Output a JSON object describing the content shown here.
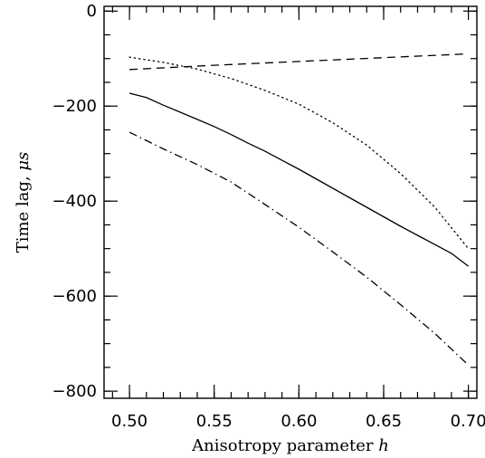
{
  "chart_data": {
    "type": "line",
    "title": "",
    "xlabel": "Anisotropy parameter",
    "xlabel_var": "h",
    "ylabel": "Time lag,",
    "ylabel_unit": "μs",
    "xlim": [
      0.485,
      0.705
    ],
    "ylim": [
      -815,
      10
    ],
    "xticks": [
      {
        "value": 0.5,
        "label": "0.50"
      },
      {
        "value": 0.55,
        "label": "0.55"
      },
      {
        "value": 0.6,
        "label": "0.60"
      },
      {
        "value": 0.65,
        "label": "0.65"
      },
      {
        "value": 0.7,
        "label": "0.70"
      }
    ],
    "yticks": [
      {
        "value": 0,
        "label": "0"
      },
      {
        "value": -200,
        "label": "−200"
      },
      {
        "value": -400,
        "label": "−400"
      },
      {
        "value": -600,
        "label": "−600"
      },
      {
        "value": -800,
        "label": "−800"
      }
    ],
    "x_minor_step": 0.01,
    "y_minor_step": 50,
    "grid": false,
    "series": [
      {
        "style": "solid",
        "x": [
          0.5,
          0.51,
          0.52,
          0.53,
          0.54,
          0.55,
          0.56,
          0.57,
          0.58,
          0.59,
          0.6,
          0.61,
          0.62,
          0.63,
          0.64,
          0.65,
          0.66,
          0.67,
          0.68,
          0.69,
          0.7
        ],
        "y": [
          -173,
          -182,
          -198,
          -213,
          -228,
          -243,
          -260,
          -278,
          -295,
          -314,
          -333,
          -353,
          -373,
          -393,
          -413,
          -433,
          -453,
          -472,
          -491,
          -510,
          -537
        ]
      },
      {
        "style": "dotted",
        "x": [
          0.5,
          0.52,
          0.54,
          0.56,
          0.58,
          0.6,
          0.62,
          0.64,
          0.66,
          0.68,
          0.7
        ],
        "y": [
          -97,
          -108,
          -122,
          -142,
          -167,
          -196,
          -235,
          -282,
          -342,
          -412,
          -500
        ]
      },
      {
        "style": "dashed",
        "x": [
          0.5,
          0.55,
          0.6,
          0.65,
          0.7
        ],
        "y": [
          -123,
          -114,
          -106,
          -98,
          -90
        ]
      },
      {
        "style": "dashdot",
        "x": [
          0.5,
          0.52,
          0.54,
          0.56,
          0.58,
          0.6,
          0.62,
          0.64,
          0.66,
          0.68,
          0.7
        ],
        "y": [
          -255,
          -290,
          -323,
          -360,
          -407,
          -455,
          -507,
          -560,
          -618,
          -678,
          -745
        ]
      }
    ]
  }
}
